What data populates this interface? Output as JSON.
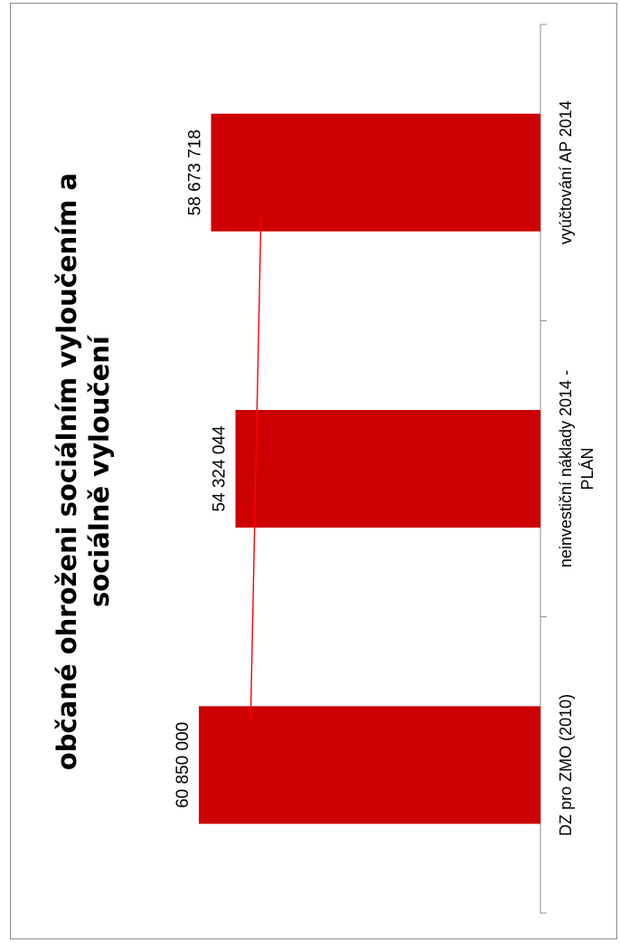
{
  "chart_data": {
    "type": "bar",
    "title_lines": [
      "občané ohroženi sociálním vyloučením a",
      "sociálně vyloučení"
    ],
    "categories": [
      [
        "DZ pro ZMO (2010)"
      ],
      [
        "neinvestiční náklady 2014 -",
        "PLÁN"
      ],
      [
        "vyúčtování AP 2014"
      ]
    ],
    "values": [
      60850000,
      54324044,
      58673718
    ],
    "value_labels": [
      "60 850 000",
      "54 324 044",
      "58 673 718"
    ],
    "bar_color": "#cc0000",
    "trendline": true,
    "trendline_color": "#ff0000",
    "orientation": "rotated-90-ccw"
  }
}
